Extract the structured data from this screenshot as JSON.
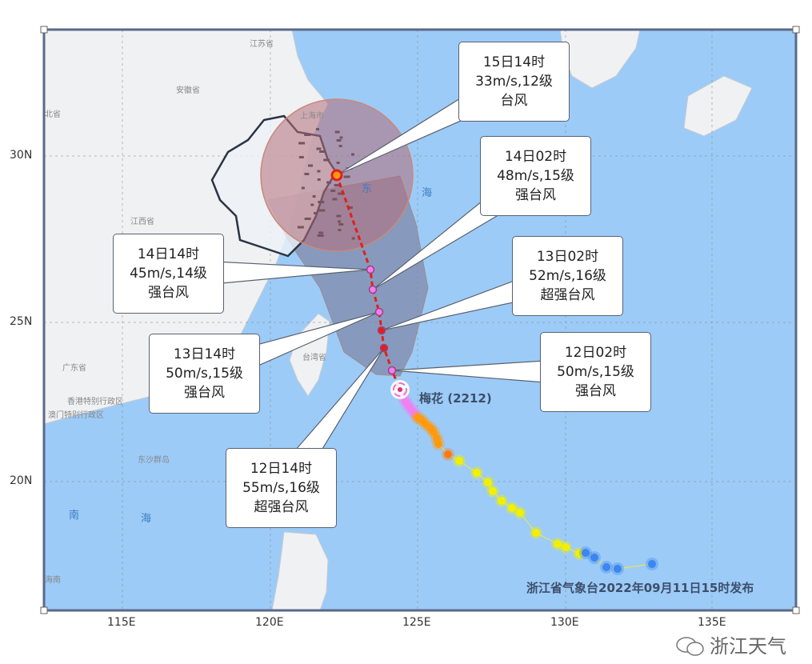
{
  "map": {
    "lon_ticks": [
      "115E",
      "120E",
      "125E",
      "130E",
      "135E"
    ],
    "lat_ticks": [
      "30N",
      "25N",
      "20N"
    ],
    "place_labels": {
      "jiangsu": "江苏省",
      "anhui": "安徽省",
      "hubei": "北省",
      "jiangxi": "江西省",
      "guangdong": "广东省",
      "hongkong": "香港特别行政区",
      "macau": "澳门特别行政区",
      "dongsha": "东沙群岛",
      "shanghai": "上海市",
      "taiwan": "台湾省",
      "hainan": "海南"
    },
    "sea_labels": {
      "east_1": "东",
      "east_2": "海",
      "south_1": "南",
      "south_2": "海"
    },
    "colors": {
      "sea": "#9ccbf7",
      "land": "#f0f1f3",
      "wind_circle": "#b46e78",
      "cone": "#8a8fa8",
      "forecast_track": "#e0201b",
      "super_typhoon": "#f080f0",
      "strong_typhoon": "#ff9a10",
      "typhoon": "#f2f000",
      "severe_tropical_storm": "#3b86f0"
    }
  },
  "typhoon": {
    "name": "梅花 (2212)"
  },
  "forecasts": [
    {
      "time": "15日14时",
      "wind": "33m/s,12级",
      "level": "台风"
    },
    {
      "time": "14日02时",
      "wind": "48m/s,15级",
      "level": "强台风"
    },
    {
      "time": "14日14时",
      "wind": "45m/s,14级",
      "level": "强台风"
    },
    {
      "time": "13日02时",
      "wind": "52m/s,16级",
      "level": "超强台风"
    },
    {
      "time": "13日14时",
      "wind": "50m/s,15级",
      "level": "强台风"
    },
    {
      "time": "12日02时",
      "wind": "50m/s,15级",
      "level": "强台风"
    },
    {
      "time": "12日14时",
      "wind": "55m/s,16级",
      "level": "超强台风"
    }
  ],
  "publisher": "浙江省气象台2022年09月11日15时发布",
  "watermark": "浙江天气"
}
